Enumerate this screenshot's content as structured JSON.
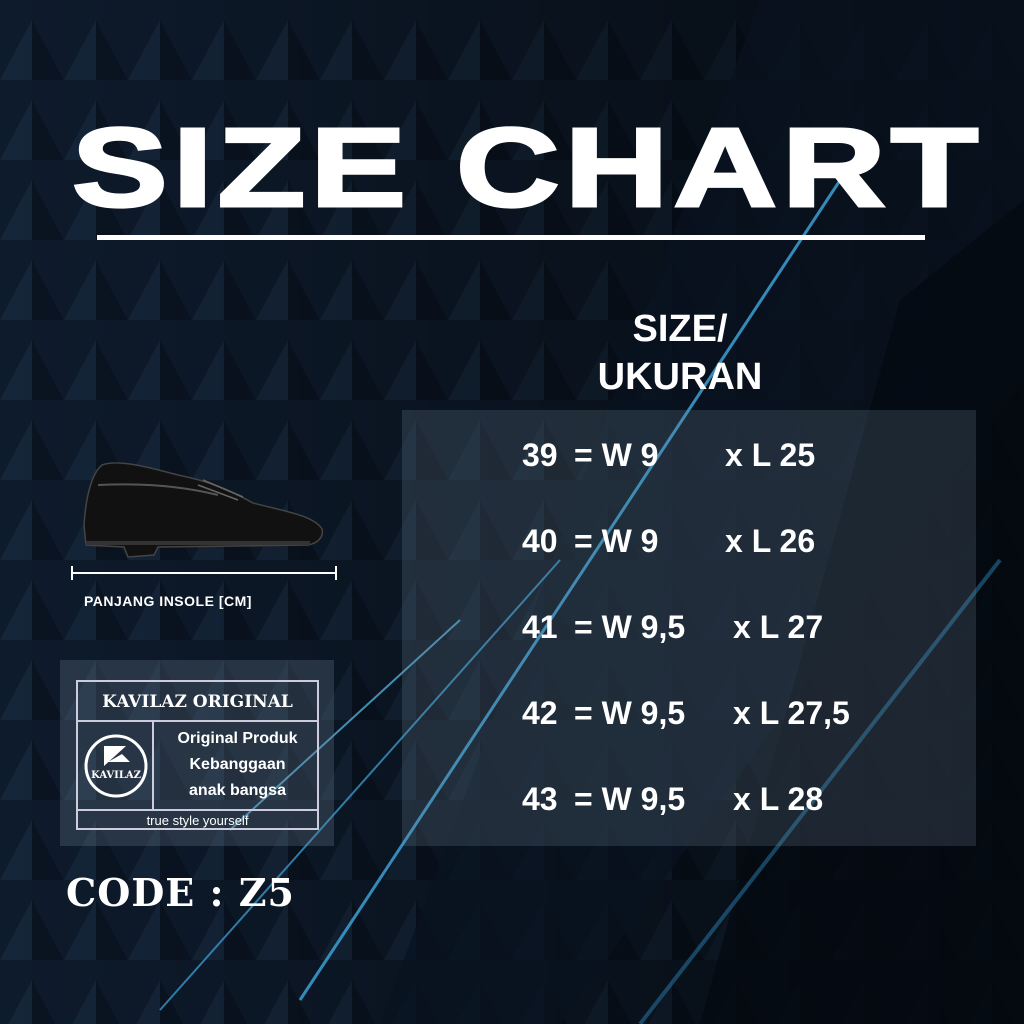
{
  "title": "SIZE CHART",
  "size_heading": {
    "line1": "SIZE/",
    "line2": "UKURAN"
  },
  "rows": [
    {
      "size": "39",
      "width": "= W 9",
      "length": "x L 25"
    },
    {
      "size": "40",
      "width": "= W 9",
      "length": "x L 26"
    },
    {
      "size": "41",
      "width": "= W 9,5",
      "length": "x L 27"
    },
    {
      "size": "42",
      "width": "= W 9,5",
      "length": "x L 27,5"
    },
    {
      "size": "43",
      "width": "= W 9,5",
      "length": "x L 28"
    }
  ],
  "insole_label": "PANJANG INSOLE [CM]",
  "brand": {
    "title": "KAVILAZ ORIGINAL",
    "logo_text": "KAVILAZ",
    "lines": [
      "Original Produk",
      "Kebanggaan",
      "anak bangsa"
    ],
    "tagline": "true style yourself"
  },
  "code": "CODE : Z5",
  "colors": {
    "background": "#0c1726",
    "accent_light": "#3fa9e0",
    "text": "#ffffff"
  }
}
